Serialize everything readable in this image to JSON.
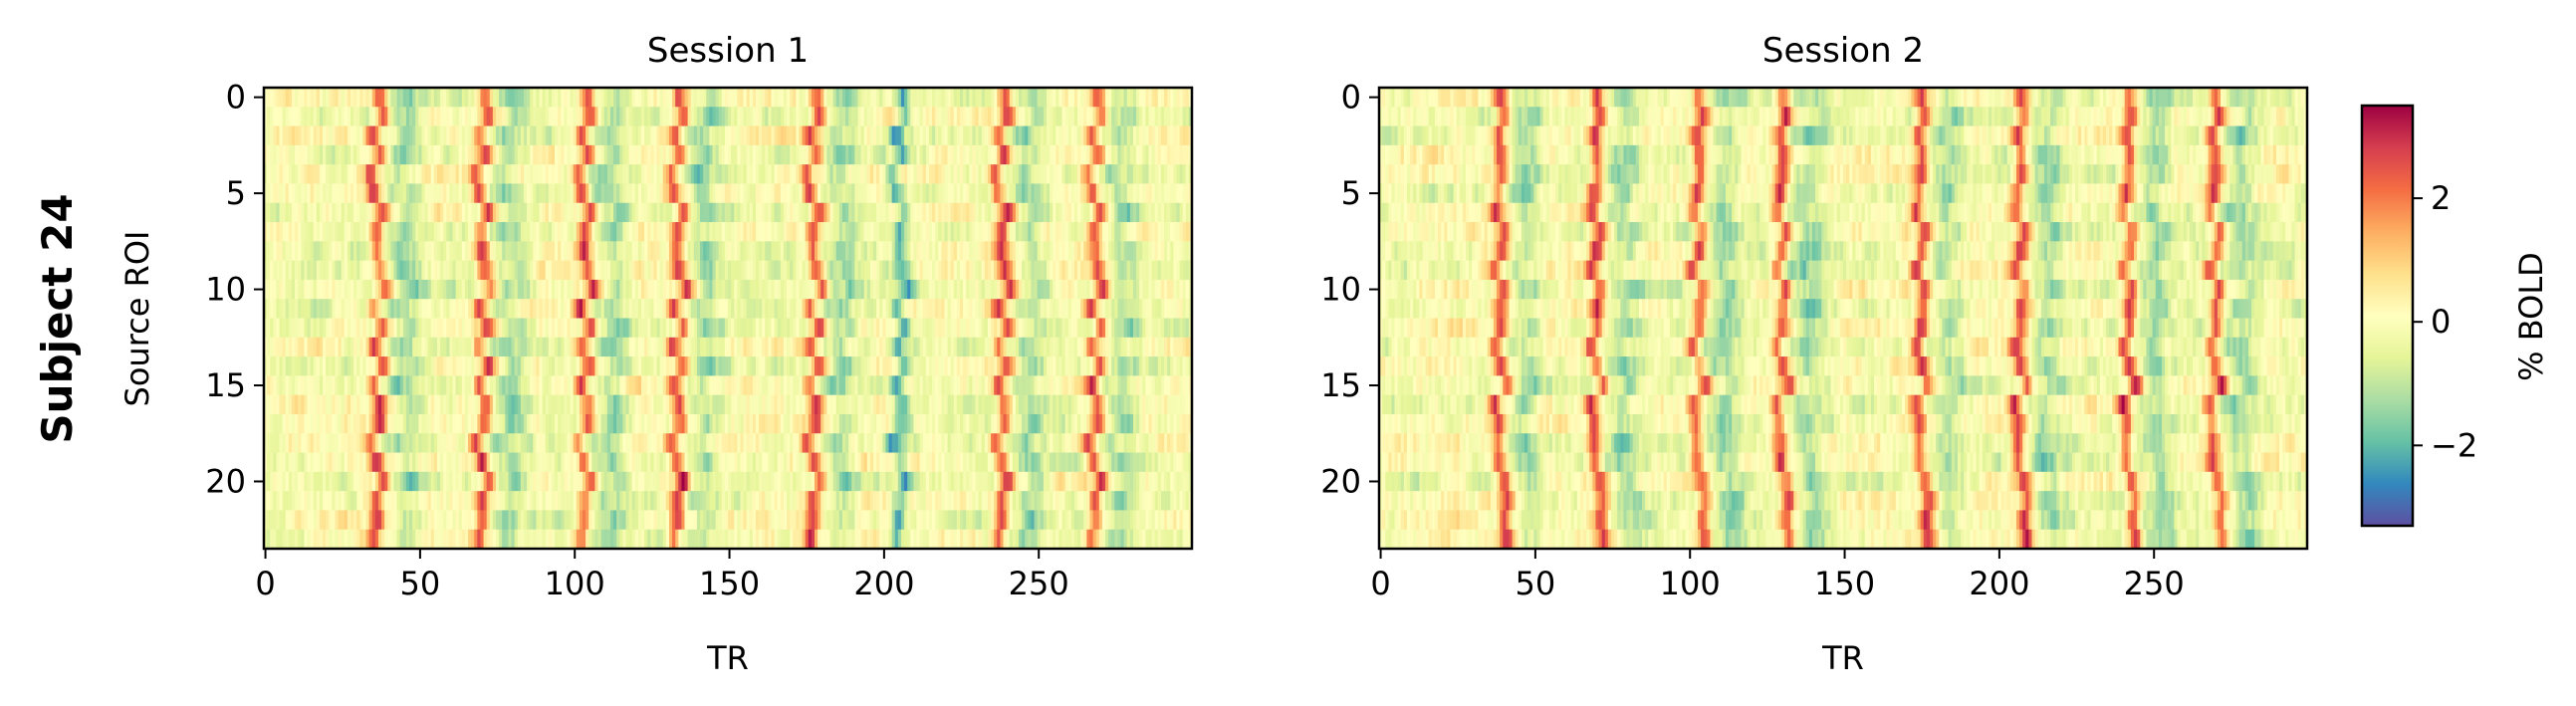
{
  "figure": {
    "row_label": "Subject 24"
  },
  "colorbar": {
    "label": "% BOLD",
    "range": [
      -3.3,
      3.5
    ],
    "ticks": [
      {
        "v": -2,
        "label": "−2"
      },
      {
        "v": 0,
        "label": "0"
      },
      {
        "v": 2,
        "label": "2"
      }
    ],
    "colormap": "Spectral_r",
    "colors": [
      "#5e4fa2",
      "#3288bd",
      "#66c2a5",
      "#abdda4",
      "#e6f598",
      "#ffffbf",
      "#fee08b",
      "#fdae61",
      "#f46d43",
      "#d53e4f",
      "#9e0142"
    ]
  },
  "chart_data": [
    {
      "type": "heatmap",
      "title": "Session 1",
      "xlabel": "TR",
      "ylabel": "Source ROI",
      "n_rows": 24,
      "n_cols": 300,
      "xlim": [
        0,
        299
      ],
      "ylim": [
        23.5,
        -0.5
      ],
      "xticks": [
        0,
        50,
        100,
        150,
        200,
        250
      ],
      "yticks": [
        0,
        5,
        10,
        15,
        20
      ],
      "events_approx": [
        {
          "tr": 36,
          "sign": "positive"
        },
        {
          "tr": 70,
          "sign": "positive"
        },
        {
          "tr": 103,
          "sign": "positive"
        },
        {
          "tr": 133,
          "sign": "positive"
        },
        {
          "tr": 177,
          "sign": "positive"
        },
        {
          "tr": 205,
          "sign": "negative"
        },
        {
          "tr": 238,
          "sign": "positive"
        },
        {
          "tr": 268,
          "sign": "positive"
        }
      ]
    },
    {
      "type": "heatmap",
      "title": "Session 2",
      "xlabel": "TR",
      "ylabel": "",
      "n_rows": 24,
      "n_cols": 300,
      "xlim": [
        0,
        299
      ],
      "ylim": [
        23.5,
        -0.5
      ],
      "xticks": [
        0,
        50,
        100,
        150,
        200,
        250
      ],
      "yticks": [
        0,
        5,
        10,
        15,
        20
      ],
      "events_approx": [
        {
          "tr": 39,
          "sign": "positive"
        },
        {
          "tr": 70,
          "sign": "positive"
        },
        {
          "tr": 103,
          "sign": "positive"
        },
        {
          "tr": 130,
          "sign": "positive"
        },
        {
          "tr": 175,
          "sign": "positive"
        },
        {
          "tr": 207,
          "sign": "positive"
        },
        {
          "tr": 242,
          "sign": "positive"
        },
        {
          "tr": 270,
          "sign": "positive"
        }
      ]
    }
  ]
}
